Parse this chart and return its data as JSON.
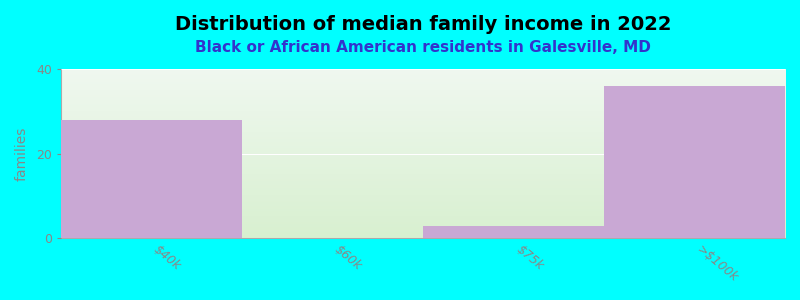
{
  "title": "Distribution of median family income in 2022",
  "subtitle": "Black or African American residents in Galesville, MD",
  "categories": [
    "$40k",
    "$60k",
    "$75k",
    ">$100k"
  ],
  "values": [
    28,
    0,
    3,
    36
  ],
  "bar_color": "#c9a8d4",
  "background_color": "#00ffff",
  "plot_bg_top": "#f0f8f0",
  "plot_bg_bottom": "#d8f0d0",
  "ylabel": "families",
  "ylim": [
    0,
    40
  ],
  "yticks": [
    0,
    20,
    40
  ],
  "title_fontsize": 14,
  "subtitle_fontsize": 11,
  "subtitle_color": "#3333cc",
  "title_color": "#000000",
  "tick_label_color": "#888888",
  "grid_color": "#ffffff",
  "spine_color": "#aaaaaa"
}
